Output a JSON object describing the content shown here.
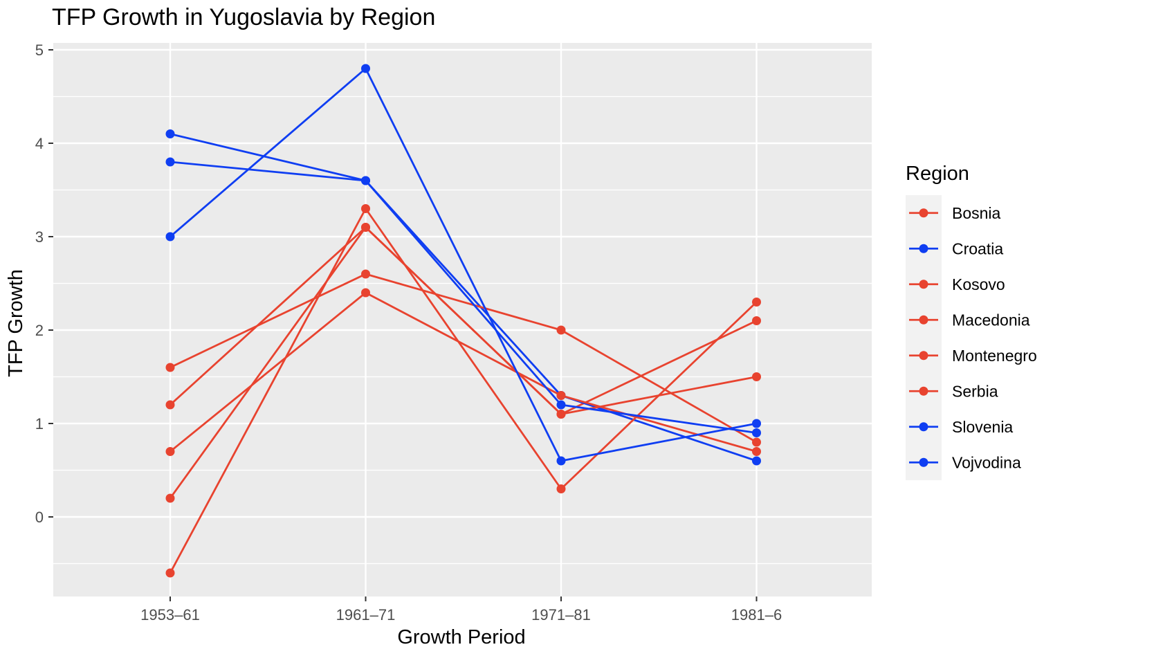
{
  "chart_data": {
    "type": "line",
    "title": "TFP Growth in Yugoslavia by Region",
    "xlabel": "Growth Period",
    "ylabel": "TFP Growth",
    "categories": [
      "1953–61",
      "1961–71",
      "1971–81",
      "1981–6"
    ],
    "y_ticks": [
      "0",
      "1",
      "2",
      "3",
      "4",
      "5"
    ],
    "ylim": [
      -0.85,
      5.1
    ],
    "grid": true,
    "legend": {
      "title": "Region",
      "placement": "right"
    },
    "series": [
      {
        "name": "Bosnia",
        "color": "#e8432f",
        "values": [
          1.2,
          3.1,
          1.1,
          2.1
        ]
      },
      {
        "name": "Croatia",
        "color": "#0f3ef2",
        "values": [
          3.8,
          3.6,
          1.3,
          0.6
        ]
      },
      {
        "name": "Kosovo",
        "color": "#e8432f",
        "values": [
          -0.6,
          3.3,
          0.3,
          2.3
        ]
      },
      {
        "name": "Macedonia",
        "color": "#e8432f",
        "values": [
          0.2,
          3.1,
          1.1,
          1.5
        ]
      },
      {
        "name": "Montenegro",
        "color": "#e8432f",
        "values": [
          0.7,
          2.4,
          1.3,
          0.7
        ]
      },
      {
        "name": "Serbia",
        "color": "#e8432f",
        "values": [
          1.6,
          2.6,
          2.0,
          0.8
        ]
      },
      {
        "name": "Slovenia",
        "color": "#0f3ef2",
        "values": [
          4.1,
          3.6,
          1.2,
          0.9
        ]
      },
      {
        "name": "Vojvodina",
        "color": "#0f3ef2",
        "values": [
          3.0,
          4.8,
          0.6,
          1.0
        ]
      }
    ]
  },
  "colors": {
    "panel_background": "#ebebeb",
    "grid": "#ffffff",
    "legend_key_background": "#f2f2f2"
  }
}
